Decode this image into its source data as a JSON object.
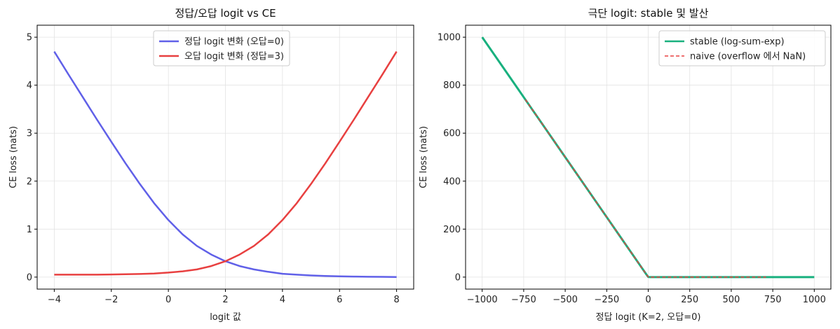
{
  "chart_data": [
    {
      "type": "line",
      "title": "정답/오답 logit vs CE",
      "xlabel": "logit 값",
      "ylabel": "CE loss (nats)",
      "xlim": [
        -4.6,
        8.6
      ],
      "ylim": [
        -0.25,
        5.25
      ],
      "xticks": [
        -4,
        -2,
        0,
        2,
        4,
        6,
        8
      ],
      "yticks": [
        0,
        1,
        2,
        3,
        4,
        5
      ],
      "grid": true,
      "legend_position": "top-center",
      "series": [
        {
          "name": "정답 logit 변화 (오답=0)",
          "color": "#6060e8",
          "x": [
            -4,
            -3.5,
            -3,
            -2.5,
            -2,
            -1.5,
            -1,
            -0.5,
            0,
            0.5,
            1,
            1.5,
            2,
            2.5,
            3,
            3.5,
            4,
            4.5,
            5,
            5.5,
            6,
            6.5,
            7,
            7.5,
            8
          ],
          "y": [
            4.7,
            4.22,
            3.75,
            3.28,
            2.82,
            2.37,
            1.94,
            1.54,
            1.19,
            0.89,
            0.65,
            0.47,
            0.33,
            0.23,
            0.16,
            0.11,
            0.07,
            0.05,
            0.034,
            0.023,
            0.015,
            0.011,
            0.007,
            0.005,
            0.003
          ]
        },
        {
          "name": "오답 logit 변화 (정답=3)",
          "color": "#e84040",
          "x": [
            -4,
            -3.5,
            -3,
            -2.5,
            -2,
            -1.5,
            -1,
            -0.5,
            0,
            0.5,
            1,
            1.5,
            2,
            2.5,
            3,
            3.5,
            4,
            4.5,
            5,
            5.5,
            6,
            6.5,
            7,
            7.5,
            8
          ],
          "y": [
            0.05,
            0.05,
            0.05,
            0.05,
            0.055,
            0.06,
            0.065,
            0.075,
            0.095,
            0.12,
            0.16,
            0.23,
            0.33,
            0.47,
            0.65,
            0.89,
            1.19,
            1.54,
            1.94,
            2.37,
            2.82,
            3.28,
            3.75,
            4.22,
            4.7
          ]
        }
      ]
    },
    {
      "type": "line",
      "title": "극단 logit: stable 및 발산",
      "xlabel": "정답 logit (K=2, 오답=0)",
      "ylabel": "CE loss (nats)",
      "xlim": [
        -1100,
        1100
      ],
      "ylim": [
        -50,
        1050
      ],
      "xticks": [
        -1000,
        -750,
        -500,
        -250,
        0,
        250,
        500,
        750,
        1000
      ],
      "yticks": [
        0,
        200,
        400,
        600,
        800,
        1000
      ],
      "grid": true,
      "legend_position": "top-right",
      "series": [
        {
          "name": "stable (log-sum-exp)",
          "color": "#18b07e",
          "style": "solid",
          "x": [
            -1000,
            -750,
            -500,
            -250,
            -10,
            0,
            10,
            250,
            500,
            750,
            1000
          ],
          "y": [
            1000,
            750,
            500,
            250,
            10,
            0.69,
            0,
            0,
            0,
            0,
            0
          ]
        },
        {
          "name": "naive (overflow 에서 NaN)",
          "color": "#e84040",
          "style": "dashed",
          "x": [
            -740,
            -500,
            -250,
            -10,
            0,
            10,
            250,
            500,
            710
          ],
          "y": [
            740,
            500,
            250,
            10,
            0.69,
            0,
            0,
            0,
            0
          ]
        }
      ]
    }
  ]
}
